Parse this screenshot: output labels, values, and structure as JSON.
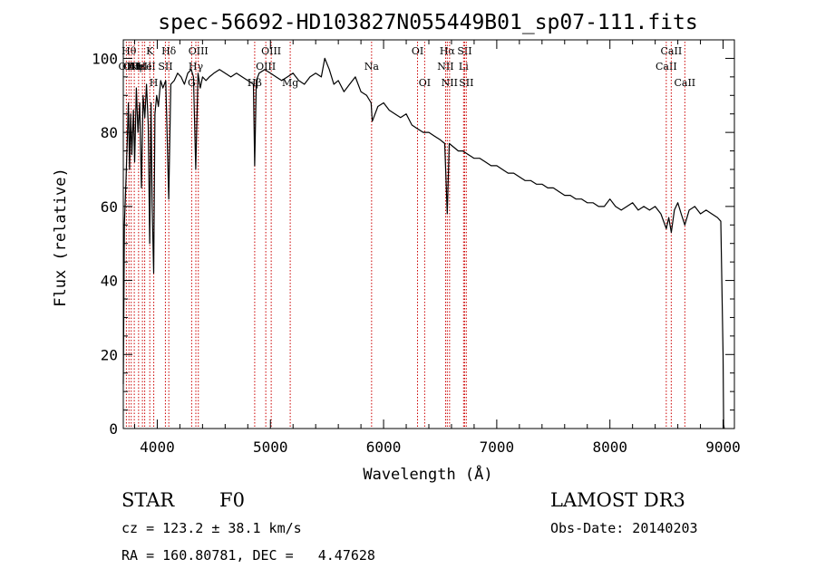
{
  "chart_data": {
    "type": "line",
    "title": "spec-56692-HD103827N055449B01_sp07-111.fits",
    "xlabel": "Wavelength (Å)",
    "ylabel": "Flux (relative)",
    "xlim": [
      3700,
      9100
    ],
    "ylim": [
      0,
      105
    ],
    "xticks": [
      4000,
      5000,
      6000,
      7000,
      8000,
      9000
    ],
    "yticks": [
      0,
      20,
      40,
      60,
      80,
      100
    ],
    "spectrum": {
      "x": [
        3700,
        3710,
        3725,
        3735,
        3745,
        3755,
        3765,
        3775,
        3790,
        3800,
        3815,
        3830,
        3845,
        3860,
        3875,
        3890,
        3905,
        3920,
        3933,
        3945,
        3955,
        3968,
        3980,
        3995,
        4010,
        4030,
        4050,
        4075,
        4101,
        4120,
        4150,
        4180,
        4210,
        4240,
        4270,
        4300,
        4320,
        4340,
        4360,
        4380,
        4400,
        4430,
        4460,
        4500,
        4550,
        4600,
        4650,
        4700,
        4750,
        4800,
        4850,
        4861,
        4875,
        4900,
        4950,
        5000,
        5050,
        5100,
        5150,
        5200,
        5250,
        5300,
        5350,
        5400,
        5450,
        5480,
        5520,
        5560,
        5600,
        5650,
        5700,
        5750,
        5800,
        5850,
        5890,
        5900,
        5950,
        6000,
        6050,
        6100,
        6150,
        6200,
        6250,
        6300,
        6350,
        6400,
        6450,
        6500,
        6540,
        6563,
        6580,
        6620,
        6660,
        6700,
        6750,
        6800,
        6850,
        6900,
        6950,
        7000,
        7050,
        7100,
        7150,
        7200,
        7250,
        7300,
        7350,
        7400,
        7450,
        7500,
        7550,
        7600,
        7650,
        7700,
        7750,
        7800,
        7850,
        7900,
        7950,
        8000,
        8050,
        8100,
        8150,
        8200,
        8250,
        8300,
        8350,
        8400,
        8450,
        8498,
        8520,
        8542,
        8570,
        8600,
        8630,
        8662,
        8700,
        8750,
        8800,
        8850,
        8900,
        8950,
        8980,
        9000,
        9005,
        9010
      ],
      "y": [
        12,
        55,
        68,
        78,
        88,
        70,
        85,
        74,
        86,
        72,
        92,
        80,
        88,
        65,
        90,
        84,
        93,
        82,
        50,
        88,
        60,
        42,
        85,
        90,
        87,
        94,
        92,
        94,
        62,
        93,
        94,
        96,
        95,
        93,
        96,
        97,
        95,
        70,
        96,
        92,
        95,
        94,
        95,
        96,
        97,
        96,
        95,
        96,
        95,
        94,
        93,
        71,
        94,
        96,
        97,
        96,
        95,
        94,
        95,
        96,
        94,
        93,
        95,
        96,
        95,
        100,
        97,
        93,
        94,
        91,
        93,
        95,
        91,
        90,
        88,
        83,
        87,
        88,
        86,
        85,
        84,
        85,
        82,
        81,
        80,
        80,
        79,
        78,
        77,
        58,
        77,
        76,
        75,
        75,
        74,
        73,
        73,
        72,
        71,
        71,
        70,
        69,
        69,
        68,
        67,
        67,
        66,
        66,
        65,
        65,
        64,
        63,
        63,
        62,
        62,
        61,
        61,
        60,
        60,
        62,
        60,
        59,
        60,
        61,
        59,
        60,
        59,
        60,
        58,
        54,
        57,
        53,
        59,
        61,
        58,
        55,
        59,
        60,
        58,
        59,
        58,
        57,
        56,
        20,
        1,
        0
      ]
    },
    "line_markers": [
      {
        "wavelength": 3727,
        "label": "OII",
        "row": 2
      },
      {
        "wavelength": 3750,
        "label": "Hθ",
        "row": 1
      },
      {
        "wavelength": 3770,
        "label": "OII",
        "row": 2
      },
      {
        "wavelength": 3797,
        "label": "Hη",
        "row": 2
      },
      {
        "wavelength": 3835,
        "label": "Hε",
        "row": 2
      },
      {
        "wavelength": 3869,
        "label": "NeIII",
        "row": 2
      },
      {
        "wavelength": 3889,
        "label": "He",
        "row": 2
      },
      {
        "wavelength": 3934,
        "label": "K",
        "row": 1
      },
      {
        "wavelength": 3969,
        "label": "H",
        "row": 3
      },
      {
        "wavelength": 4072,
        "label": "SII",
        "row": 2
      },
      {
        "wavelength": 4102,
        "label": "Hδ",
        "row": 1
      },
      {
        "wavelength": 4304,
        "label": "G",
        "row": 3
      },
      {
        "wavelength": 4341,
        "label": "Hγ",
        "row": 2
      },
      {
        "wavelength": 4363,
        "label": "OIII",
        "row": 1
      },
      {
        "wavelength": 4861,
        "label": "Hβ",
        "row": 3
      },
      {
        "wavelength": 4959,
        "label": "OIII",
        "row": 2
      },
      {
        "wavelength": 5007,
        "label": "OIII",
        "row": 1
      },
      {
        "wavelength": 5175,
        "label": "Mg",
        "row": 3
      },
      {
        "wavelength": 5894,
        "label": "Na",
        "row": 2
      },
      {
        "wavelength": 6300,
        "label": "OI",
        "row": 1
      },
      {
        "wavelength": 6363,
        "label": "OI",
        "row": 3
      },
      {
        "wavelength": 6548,
        "label": "NII",
        "row": 2
      },
      {
        "wavelength": 6563,
        "label": "Hα",
        "row": 1
      },
      {
        "wavelength": 6583,
        "label": "NII",
        "row": 3
      },
      {
        "wavelength": 6707,
        "label": "Li",
        "row": 2
      },
      {
        "wavelength": 6716,
        "label": "SII",
        "row": 1
      },
      {
        "wavelength": 6731,
        "label": "SII",
        "row": 3
      },
      {
        "wavelength": 8498,
        "label": "CaII",
        "row": 2
      },
      {
        "wavelength": 8542,
        "label": "CaII",
        "row": 1
      },
      {
        "wavelength": 8662,
        "label": "CaII",
        "row": 3
      }
    ],
    "colors": {
      "spectrum": "#000000",
      "markers": "#cc0000",
      "axes": "#000000"
    }
  },
  "info": {
    "object_class": "STAR",
    "subclass": "F0",
    "redshift_text": "cz = 123.2 ± 38.1 km/s",
    "coords_text": "RA = 160.80781, DEC =   4.47628",
    "survey": "LAMOST DR3",
    "obs_date_text": "Obs-Date: 20140203"
  }
}
